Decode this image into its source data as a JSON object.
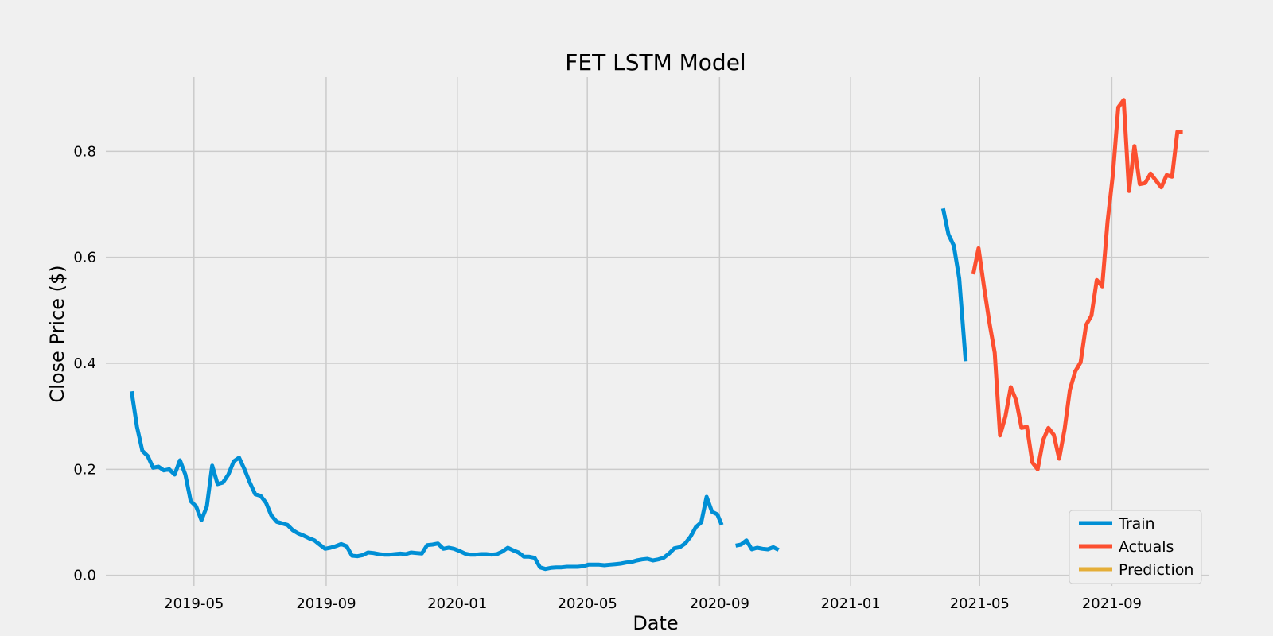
{
  "chart_data": {
    "type": "line",
    "title": "FET LSTM Model",
    "xlabel": "Date",
    "ylabel": "Close Price ($)",
    "grid": true,
    "legend_placement": "lower-right",
    "xlim": [
      "2019-02-08",
      "2021-11-30"
    ],
    "ylim": [
      -0.02,
      0.94
    ],
    "x_ticks": [
      "2019-05",
      "2019-09",
      "2020-01",
      "2020-05",
      "2020-09",
      "2021-01",
      "2021-05",
      "2021-09"
    ],
    "y_ticks": [
      "0.0",
      "0.2",
      "0.4",
      "0.6",
      "0.8"
    ],
    "colors": {
      "Train": "#008fd5",
      "Actuals": "#fc4f30",
      "Prediction": "#e5ae38"
    },
    "series": [
      {
        "name": "Train",
        "segments": [
          {
            "x": [
              "2019-03-04",
              "2019-03-09",
              "2019-03-14",
              "2019-03-19",
              "2019-03-24",
              "2019-03-29",
              "2019-04-03",
              "2019-04-08",
              "2019-04-13",
              "2019-04-18",
              "2019-04-23",
              "2019-04-28",
              "2019-05-03",
              "2019-05-08",
              "2019-05-13",
              "2019-05-18",
              "2019-05-23",
              "2019-05-28",
              "2019-06-02",
              "2019-06-07",
              "2019-06-12",
              "2019-06-17",
              "2019-06-22",
              "2019-06-27",
              "2019-07-02",
              "2019-07-07",
              "2019-07-12",
              "2019-07-17",
              "2019-07-22",
              "2019-07-27",
              "2019-08-01",
              "2019-08-06",
              "2019-08-11",
              "2019-08-16",
              "2019-08-21",
              "2019-08-26",
              "2019-08-31",
              "2019-09-05",
              "2019-09-10",
              "2019-09-15",
              "2019-09-20",
              "2019-09-25",
              "2019-09-30",
              "2019-10-05",
              "2019-10-10",
              "2019-10-15",
              "2019-10-20",
              "2019-10-25",
              "2019-10-30",
              "2019-11-04",
              "2019-11-09",
              "2019-11-14",
              "2019-11-19",
              "2019-11-24",
              "2019-11-29",
              "2019-12-04",
              "2019-12-09",
              "2019-12-14",
              "2019-12-19",
              "2019-12-24",
              "2019-12-29",
              "2020-01-03",
              "2020-01-08",
              "2020-01-13",
              "2020-01-18",
              "2020-01-23",
              "2020-01-28",
              "2020-02-02",
              "2020-02-07",
              "2020-02-12",
              "2020-02-17",
              "2020-02-22",
              "2020-02-27",
              "2020-03-03",
              "2020-03-08",
              "2020-03-13",
              "2020-03-18",
              "2020-03-23",
              "2020-03-28",
              "2020-04-02",
              "2020-04-07",
              "2020-04-12",
              "2020-04-17",
              "2020-04-22",
              "2020-04-27",
              "2020-05-02",
              "2020-05-07",
              "2020-05-12",
              "2020-05-17",
              "2020-05-22",
              "2020-05-27",
              "2020-06-01",
              "2020-06-06",
              "2020-06-11",
              "2020-06-16",
              "2020-06-21",
              "2020-06-26",
              "2020-07-01",
              "2020-07-06",
              "2020-07-11",
              "2020-07-16",
              "2020-07-21",
              "2020-07-26",
              "2020-07-31",
              "2020-08-05",
              "2020-08-10",
              "2020-08-15",
              "2020-08-20",
              "2020-08-25",
              "2020-08-30",
              "2020-09-03"
            ],
            "y": [
              0.347,
              0.28,
              0.235,
              0.225,
              0.203,
              0.205,
              0.198,
              0.2,
              0.19,
              0.217,
              0.19,
              0.14,
              0.13,
              0.104,
              0.13,
              0.207,
              0.172,
              0.175,
              0.19,
              0.215,
              0.222,
              0.2,
              0.175,
              0.153,
              0.15,
              0.137,
              0.113,
              0.101,
              0.098,
              0.095,
              0.085,
              0.079,
              0.075,
              0.07,
              0.066,
              0.058,
              0.05,
              0.052,
              0.055,
              0.059,
              0.055,
              0.037,
              0.036,
              0.038,
              0.043,
              0.042,
              0.04,
              0.039,
              0.039,
              0.04,
              0.041,
              0.04,
              0.043,
              0.042,
              0.041,
              0.057,
              0.058,
              0.06,
              0.05,
              0.052,
              0.05,
              0.046,
              0.041,
              0.039,
              0.039,
              0.04,
              0.04,
              0.039,
              0.04,
              0.045,
              0.052,
              0.047,
              0.043,
              0.035,
              0.035,
              0.033,
              0.015,
              0.012,
              0.014,
              0.015,
              0.015,
              0.016,
              0.016,
              0.016,
              0.017,
              0.02,
              0.02,
              0.02,
              0.019,
              0.02,
              0.021,
              0.022,
              0.024,
              0.025,
              0.028,
              0.03,
              0.031,
              0.028,
              0.03,
              0.033,
              0.041,
              0.051,
              0.053,
              0.06,
              0.073,
              0.091,
              0.1,
              0.148,
              0.12,
              0.115,
              0.095
            ]
          },
          {
            "x": [
              "2020-09-16",
              "2020-09-21",
              "2020-09-26",
              "2020-10-01",
              "2020-10-06",
              "2020-10-11",
              "2020-10-16",
              "2020-10-21",
              "2020-10-26"
            ],
            "y": [
              0.056,
              0.058,
              0.066,
              0.049,
              0.052,
              0.05,
              0.049,
              0.053,
              0.048
            ]
          },
          {
            "x": [
              "2021-03-28",
              "2021-04-02",
              "2021-04-07",
              "2021-04-12",
              "2021-04-18"
            ],
            "y": [
              0.692,
              0.643,
              0.622,
              0.56,
              0.404
            ]
          }
        ]
      },
      {
        "name": "Actuals",
        "segments": [
          {
            "x": [
              "2021-04-25",
              "2021-04-30",
              "2021-05-05",
              "2021-05-10",
              "2021-05-15",
              "2021-05-20",
              "2021-05-25",
              "2021-05-30",
              "2021-06-04",
              "2021-06-09",
              "2021-06-14",
              "2021-06-19",
              "2021-06-24",
              "2021-06-29",
              "2021-07-04",
              "2021-07-09",
              "2021-07-14",
              "2021-07-19",
              "2021-07-24",
              "2021-07-29",
              "2021-08-03",
              "2021-08-08",
              "2021-08-13",
              "2021-08-18",
              "2021-08-23",
              "2021-08-28",
              "2021-09-02",
              "2021-09-07",
              "2021-09-12",
              "2021-09-17",
              "2021-09-22",
              "2021-09-27",
              "2021-10-02",
              "2021-10-07",
              "2021-10-12",
              "2021-10-17",
              "2021-10-22",
              "2021-10-27",
              "2021-11-01",
              "2021-11-06"
            ],
            "y": [
              0.568,
              0.617,
              0.545,
              0.478,
              0.42,
              0.264,
              0.3,
              0.355,
              0.33,
              0.278,
              0.28,
              0.213,
              0.2,
              0.255,
              0.278,
              0.265,
              0.22,
              0.275,
              0.35,
              0.385,
              0.402,
              0.472,
              0.49,
              0.557,
              0.545,
              0.667,
              0.757,
              0.883,
              0.897,
              0.725,
              0.81,
              0.738,
              0.74,
              0.758,
              0.745,
              0.732,
              0.755,
              0.752,
              0.837,
              0.837
            ]
          }
        ]
      },
      {
        "name": "Prediction",
        "segments": []
      }
    ]
  }
}
